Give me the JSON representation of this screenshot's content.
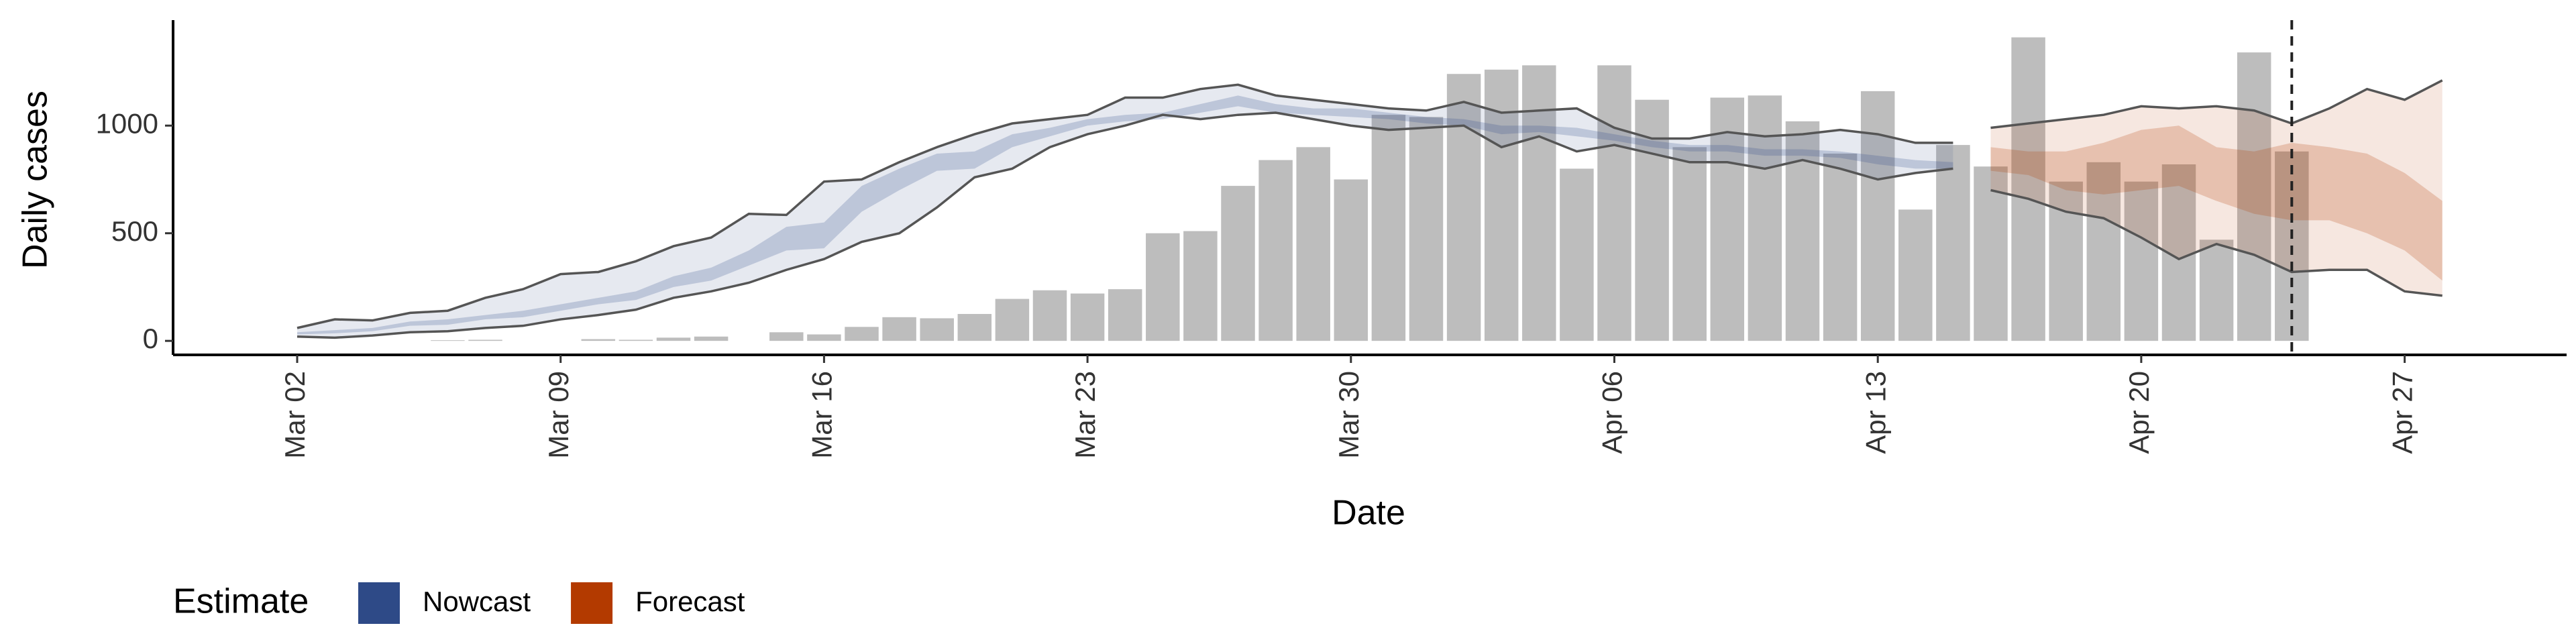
{
  "chart_data": {
    "type": "band",
    "x_label": "Date",
    "y_label": "Daily cases",
    "ylim": [
      -65,
      1490
    ],
    "yticks": [
      0,
      500,
      1000
    ],
    "categories": [
      "Mar 02",
      null,
      null,
      null,
      null,
      null,
      null,
      "Mar 09",
      null,
      null,
      null,
      null,
      null,
      null,
      "Mar 16",
      null,
      null,
      null,
      null,
      null,
      null,
      "Mar 23",
      null,
      null,
      null,
      null,
      null,
      null,
      "Mar 30",
      null,
      null,
      null,
      null,
      null,
      null,
      "Apr 06",
      null,
      null,
      null,
      null,
      null,
      null,
      "Apr 13",
      null,
      null,
      null,
      null,
      null,
      null,
      "Apr 20",
      null,
      null,
      null,
      null,
      null,
      null,
      "Apr 27",
      null
    ],
    "bars": {
      "color": "#bdbdbd",
      "values": [
        0,
        0,
        0,
        0,
        3,
        5,
        0,
        0,
        8,
        5,
        15,
        20,
        0,
        40,
        30,
        65,
        110,
        105,
        125,
        195,
        235,
        220,
        240,
        500,
        510,
        720,
        840,
        900,
        750,
        1050,
        1040,
        1240,
        1260,
        1280,
        800,
        1280,
        1120,
        900,
        1130,
        1140,
        1020,
        870,
        1160,
        610,
        910,
        810,
        1410,
        740,
        830,
        740,
        820,
        470,
        1340,
        880,
        null,
        null,
        null,
        null
      ]
    },
    "reference_line_index": 53,
    "legend_title": "Estimate",
    "series": [
      {
        "name": "Nowcast",
        "color": "#2e4a87",
        "upper90": [
          60,
          100,
          95,
          130,
          140,
          200,
          240,
          310,
          320,
          370,
          440,
          480,
          590,
          585,
          740,
          750,
          830,
          900,
          960,
          1010,
          1030,
          1050,
          1130,
          1130,
          1170,
          1190,
          1140,
          1120,
          1100,
          1080,
          1070,
          1110,
          1060,
          1070,
          1080,
          990,
          940,
          940,
          970,
          950,
          960,
          980,
          960,
          920,
          920,
          null,
          null,
          null,
          null,
          null,
          null,
          null,
          null,
          null,
          null,
          null,
          null,
          null
        ],
        "lower90": [
          20,
          15,
          25,
          40,
          45,
          60,
          70,
          100,
          120,
          145,
          200,
          230,
          270,
          330,
          380,
          460,
          500,
          620,
          760,
          800,
          900,
          960,
          1000,
          1050,
          1030,
          1050,
          1060,
          1030,
          1000,
          980,
          990,
          1000,
          900,
          950,
          880,
          910,
          870,
          830,
          830,
          800,
          840,
          800,
          750,
          780,
          800,
          null,
          null,
          null,
          null,
          null,
          null,
          null,
          null,
          null,
          null,
          null,
          null,
          null
        ],
        "upper50": [
          40,
          50,
          60,
          90,
          100,
          120,
          140,
          170,
          200,
          230,
          300,
          340,
          420,
          530,
          550,
          720,
          800,
          870,
          880,
          960,
          990,
          1030,
          1050,
          1060,
          1100,
          1140,
          1100,
          1080,
          1080,
          1060,
          1040,
          1030,
          1000,
          1000,
          990,
          960,
          930,
          910,
          910,
          890,
          890,
          880,
          860,
          840,
          830,
          null,
          null,
          null,
          null,
          null,
          null,
          null,
          null,
          null,
          null,
          null,
          null,
          null
        ],
        "lower50": [
          30,
          35,
          45,
          70,
          75,
          100,
          110,
          140,
          170,
          190,
          250,
          280,
          350,
          420,
          430,
          600,
          700,
          790,
          800,
          900,
          950,
          1000,
          1020,
          1030,
          1060,
          1090,
          1060,
          1050,
          1040,
          1030,
          1010,
          1000,
          960,
          970,
          950,
          930,
          900,
          880,
          880,
          860,
          860,
          850,
          820,
          800,
          800,
          null,
          null,
          null,
          null,
          null,
          null,
          null,
          null,
          null,
          null,
          null,
          null,
          null
        ]
      },
      {
        "name": "Forecast",
        "color": "#b33a00",
        "upper90": [
          null,
          null,
          null,
          null,
          null,
          null,
          null,
          null,
          null,
          null,
          null,
          null,
          null,
          null,
          null,
          null,
          null,
          null,
          null,
          null,
          null,
          null,
          null,
          null,
          null,
          null,
          null,
          null,
          null,
          null,
          null,
          null,
          null,
          null,
          null,
          null,
          null,
          null,
          null,
          null,
          null,
          null,
          null,
          null,
          null,
          990,
          1010,
          1030,
          1050,
          1090,
          1080,
          1090,
          1070,
          1010,
          1080,
          1170,
          1120,
          1210
        ],
        "lower90": [
          null,
          null,
          null,
          null,
          null,
          null,
          null,
          null,
          null,
          null,
          null,
          null,
          null,
          null,
          null,
          null,
          null,
          null,
          null,
          null,
          null,
          null,
          null,
          null,
          null,
          null,
          null,
          null,
          null,
          null,
          null,
          null,
          null,
          null,
          null,
          null,
          null,
          null,
          null,
          null,
          null,
          null,
          null,
          null,
          null,
          700,
          660,
          600,
          570,
          480,
          380,
          450,
          400,
          320,
          330,
          330,
          230,
          210
        ],
        "upper50": [
          null,
          null,
          null,
          null,
          null,
          null,
          null,
          null,
          null,
          null,
          null,
          null,
          null,
          null,
          null,
          null,
          null,
          null,
          null,
          null,
          null,
          null,
          null,
          null,
          null,
          null,
          null,
          null,
          null,
          null,
          null,
          null,
          null,
          null,
          null,
          null,
          null,
          null,
          null,
          null,
          null,
          null,
          null,
          null,
          null,
          900,
          880,
          880,
          920,
          980,
          1000,
          900,
          880,
          920,
          900,
          870,
          780,
          650
        ],
        "lower50": [
          null,
          null,
          null,
          null,
          null,
          null,
          null,
          null,
          null,
          null,
          null,
          null,
          null,
          null,
          null,
          null,
          null,
          null,
          null,
          null,
          null,
          null,
          null,
          null,
          null,
          null,
          null,
          null,
          null,
          null,
          null,
          null,
          null,
          null,
          null,
          null,
          null,
          null,
          null,
          null,
          null,
          null,
          null,
          null,
          null,
          790,
          770,
          700,
          680,
          700,
          720,
          650,
          590,
          560,
          560,
          500,
          420,
          280
        ]
      }
    ]
  }
}
